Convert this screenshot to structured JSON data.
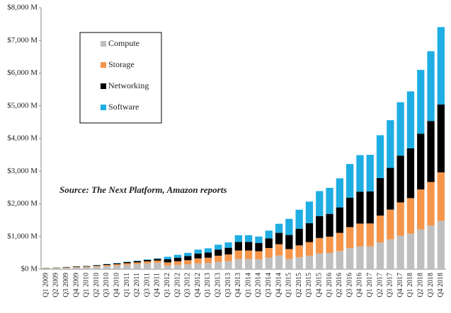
{
  "chart_data": {
    "type": "stacked-bar",
    "annotation": "Source: The Next Platform, Amazon reports",
    "categories": [
      "Q1 2009",
      "Q2 2009",
      "Q3 2009",
      "Q4 2009",
      "Q1 2010",
      "Q2 2010",
      "Q3 2010",
      "Q4 2010",
      "Q1 2011",
      "Q2 2011",
      "Q3 2011",
      "Q4 2011",
      "Q1 2012",
      "Q2 2012",
      "Q3 2012",
      "Q4 2012",
      "Q1 2013",
      "Q2 2013",
      "Q3 2013",
      "Q4 2013",
      "Q1 2014",
      "Q2 2014",
      "Q3 2014",
      "Q4 2014",
      "Q1 2015",
      "Q2 2015",
      "Q3 2015",
      "Q4 2015",
      "Q1 2016",
      "Q2 2016",
      "Q3 2016",
      "Q4 2016",
      "Q1 2017",
      "Q2 2017",
      "Q3 2017",
      "Q4 2017",
      "Q1 2018",
      "Q2 2018",
      "Q3 2018",
      "Q4 2018"
    ],
    "series": [
      {
        "name": "Compute",
        "color": "#bfbfbf",
        "values": [
          24,
          30,
          42,
          54,
          60,
          78,
          96,
          114,
          138,
          156,
          180,
          198,
          114,
          132,
          150,
          180,
          192,
          225,
          246,
          312,
          312,
          300,
          354,
          417,
          308,
          364,
          414,
          478,
          498,
          556,
          644,
          698,
          700,
          820,
          912,
          1022,
          1088,
          1220,
          1334,
          1482
        ]
      },
      {
        "name": "Storage",
        "color": "#f4954a",
        "values": [
          8,
          10,
          14,
          18,
          20,
          26,
          32,
          38,
          46,
          52,
          60,
          66,
          95,
          110,
          125,
          150,
          160,
          188,
          205,
          260,
          260,
          250,
          295,
          348,
          308,
          364,
          414,
          478,
          498,
          556,
          644,
          698,
          700,
          820,
          912,
          1022,
          1088,
          1220,
          1334,
          1482
        ]
      },
      {
        "name": "Networking",
        "color": "#000000",
        "values": [
          6,
          8,
          10,
          14,
          15,
          20,
          24,
          28,
          34,
          39,
          45,
          50,
          95,
          110,
          125,
          150,
          160,
          187,
          205,
          260,
          260,
          250,
          295,
          347,
          431,
          510,
          580,
          669,
          697,
          778,
          902,
          977,
          980,
          1148,
          1277,
          1431,
          1523,
          1708,
          1868,
          2075
        ]
      },
      {
        "name": "Software",
        "color": "#1eaee3",
        "values": [
          2,
          2,
          4,
          4,
          5,
          6,
          8,
          10,
          12,
          13,
          15,
          16,
          76,
          88,
          100,
          120,
          128,
          150,
          164,
          208,
          208,
          200,
          236,
          278,
          493,
          582,
          662,
          765,
          797,
          890,
          1030,
          1117,
          1120,
          1312,
          1459,
          1635,
          1741,
          1952,
          2134,
          2371
        ]
      }
    ],
    "ylim": [
      0,
      8000
    ],
    "yticks": [
      {
        "value": 0,
        "label": "$0 M"
      },
      {
        "value": 1000,
        "label": "$1,000 M"
      },
      {
        "value": 2000,
        "label": "$2,000 M"
      },
      {
        "value": 3000,
        "label": "$3,000 M"
      },
      {
        "value": 4000,
        "label": "$4,000 M"
      },
      {
        "value": 5000,
        "label": "$5,000 M"
      },
      {
        "value": 6000,
        "label": "$6,000 M"
      },
      {
        "value": 7000,
        "label": "$7,000 M"
      },
      {
        "value": 8000,
        "label": "$8,000 M"
      }
    ],
    "grid": false
  }
}
